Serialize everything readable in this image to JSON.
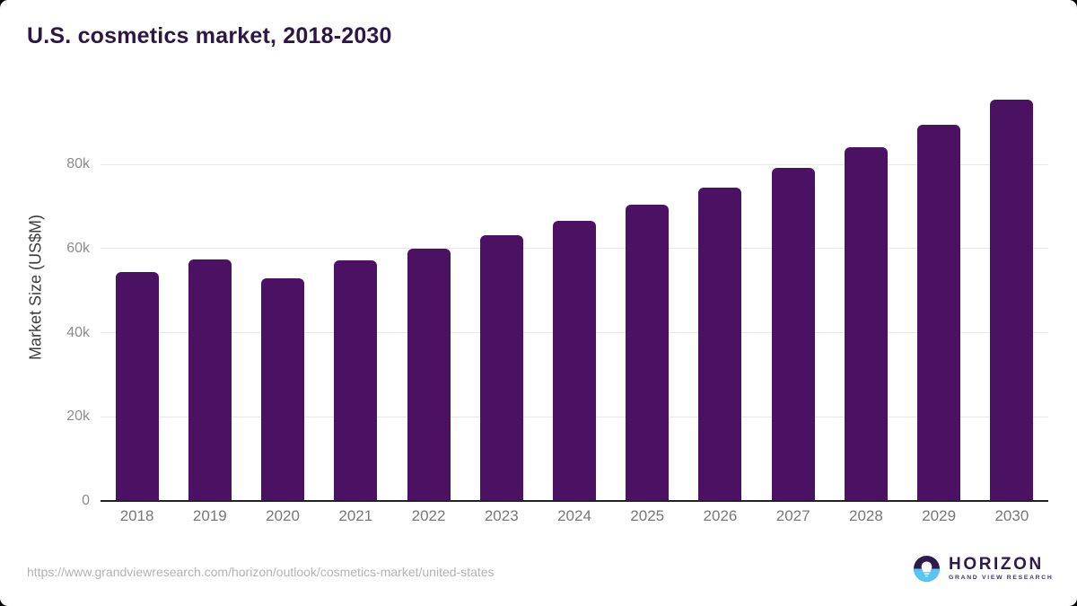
{
  "title": "U.S. cosmetics market, 2018-2030",
  "source_url": "https://www.grandviewresearch.com/horizon/outlook/cosmetics-market/united-states",
  "logo": {
    "name": "HORIZON",
    "subtitle": "GRAND VIEW RESEARCH",
    "icon": "sunset-horizon-icon"
  },
  "colors": {
    "bar": "#4b1162",
    "title": "#2e1745",
    "gridline": "#e8e8e8",
    "axis_line": "#222222",
    "tick_label": "#8c8c8c",
    "x_label": "#777777",
    "url_text": "#b3b3b3",
    "logo_dark": "#2d1b4e",
    "logo_blue": "#56c5f2"
  },
  "chart_data": {
    "type": "bar",
    "title": "U.S. cosmetics market, 2018-2030",
    "categories": [
      "2018",
      "2019",
      "2020",
      "2021",
      "2022",
      "2023",
      "2024",
      "2025",
      "2026",
      "2027",
      "2028",
      "2029",
      "2030"
    ],
    "values": [
      54400,
      57400,
      52900,
      57200,
      60000,
      63100,
      66600,
      70400,
      74500,
      79100,
      84000,
      89300,
      95300
    ],
    "unit": "US$M",
    "xlabel": "",
    "ylabel": "Market Size (US$M)",
    "ylim": [
      0,
      100000
    ],
    "yticks": [
      {
        "value": 0,
        "label": "0"
      },
      {
        "value": 20000,
        "label": "20k"
      },
      {
        "value": 40000,
        "label": "40k"
      },
      {
        "value": 60000,
        "label": "60k"
      },
      {
        "value": 80000,
        "label": "80k"
      }
    ],
    "grid": "horizontal",
    "legend": "none"
  }
}
